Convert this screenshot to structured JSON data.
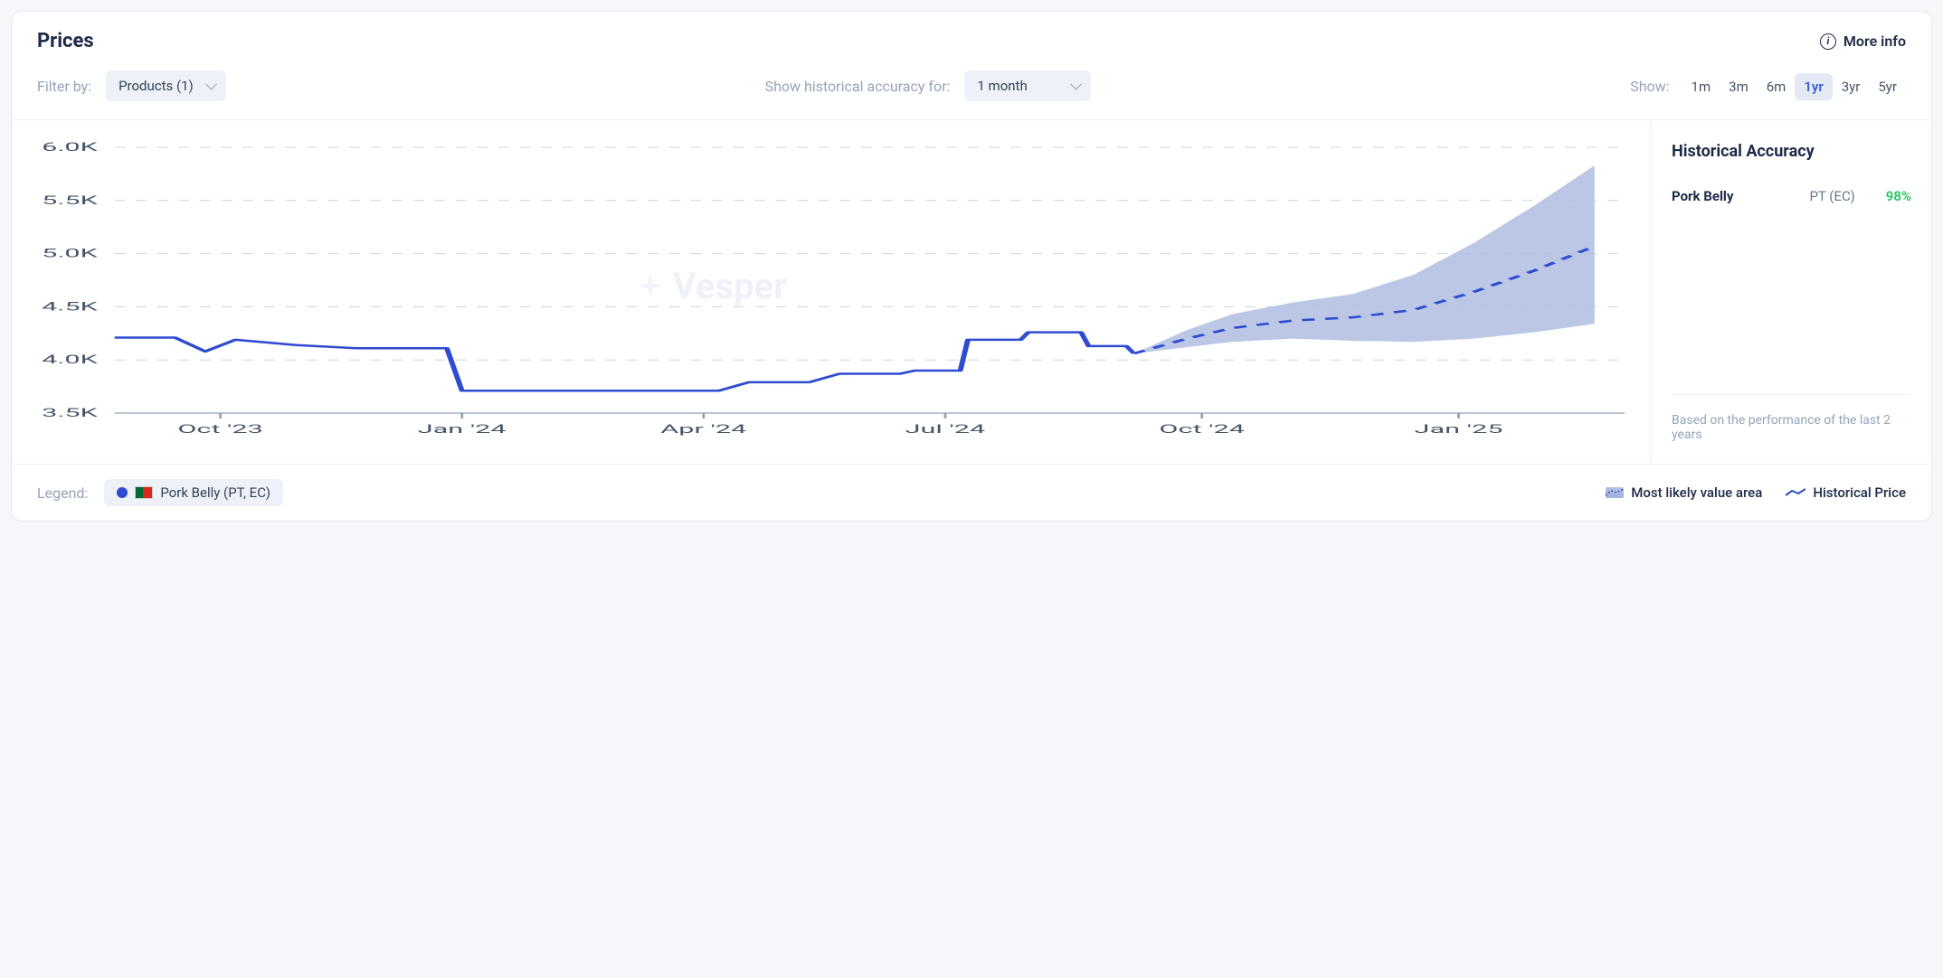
{
  "title": "Prices",
  "moreInfo": "More info",
  "filters": {
    "filterByLabel": "Filter by:",
    "productsSelect": "Products (1)",
    "showHistLabel": "Show historical accuracy for:",
    "histSelect": "1 month",
    "showLabel": "Show:",
    "ranges": [
      "1m",
      "3m",
      "6m",
      "1yr",
      "3yr",
      "5yr"
    ],
    "activeRange": "1yr"
  },
  "chart": {
    "type": "line-with-forecast-band",
    "ylim": [
      3500,
      6000
    ],
    "yticks": [
      3500,
      4000,
      4500,
      5000,
      5500,
      6000
    ],
    "ytickLabels": [
      "3.5K",
      "4.0K",
      "4.5K",
      "5.0K",
      "5.5K",
      "6.0K"
    ],
    "xticks": [
      0.07,
      0.23,
      0.39,
      0.55,
      0.72,
      0.89
    ],
    "xtickLabels": [
      "Oct '23",
      "Jan '24",
      "Apr '24",
      "Jul '24",
      "Oct '24",
      "Jan '25"
    ],
    "colors": {
      "line": "#2f4bd1",
      "forecastLine": "#2f4bd1",
      "band": "#afbde0",
      "grid": "#cbd5e1",
      "axis": "#94a3b8",
      "background": "#ffffff"
    },
    "lineWidth": 2.5,
    "forecastDash": "6 5",
    "historical": [
      [
        0.0,
        4210
      ],
      [
        0.04,
        4210
      ],
      [
        0.06,
        4080
      ],
      [
        0.08,
        4190
      ],
      [
        0.12,
        4140
      ],
      [
        0.16,
        4110
      ],
      [
        0.22,
        4110
      ],
      [
        0.23,
        3710
      ],
      [
        0.4,
        3710
      ],
      [
        0.42,
        3790
      ],
      [
        0.46,
        3790
      ],
      [
        0.48,
        3870
      ],
      [
        0.52,
        3870
      ],
      [
        0.53,
        3900
      ],
      [
        0.56,
        3900
      ],
      [
        0.565,
        4190
      ],
      [
        0.6,
        4190
      ],
      [
        0.605,
        4260
      ],
      [
        0.64,
        4260
      ],
      [
        0.645,
        4130
      ],
      [
        0.67,
        4130
      ],
      [
        0.675,
        4060
      ]
    ],
    "forecast": [
      [
        0.675,
        4060
      ],
      [
        0.71,
        4200
      ],
      [
        0.74,
        4300
      ],
      [
        0.78,
        4370
      ],
      [
        0.82,
        4400
      ],
      [
        0.86,
        4470
      ],
      [
        0.9,
        4640
      ],
      [
        0.94,
        4840
      ],
      [
        0.98,
        5070
      ]
    ],
    "bandUpper": [
      [
        0.675,
        4060
      ],
      [
        0.71,
        4280
      ],
      [
        0.74,
        4430
      ],
      [
        0.78,
        4540
      ],
      [
        0.82,
        4620
      ],
      [
        0.86,
        4800
      ],
      [
        0.9,
        5100
      ],
      [
        0.94,
        5450
      ],
      [
        0.98,
        5830
      ]
    ],
    "bandLower": [
      [
        0.675,
        4060
      ],
      [
        0.71,
        4120
      ],
      [
        0.74,
        4170
      ],
      [
        0.78,
        4200
      ],
      [
        0.82,
        4180
      ],
      [
        0.86,
        4170
      ],
      [
        0.9,
        4200
      ],
      [
        0.94,
        4260
      ],
      [
        0.98,
        4340
      ]
    ],
    "watermark": "Vesper"
  },
  "side": {
    "title": "Historical Accuracy",
    "product": "Pork Belly",
    "region": "PT (EC)",
    "accuracy": "98%",
    "accuracyColor": "#22c55e",
    "footnote": "Based on the performance of the last 2 years"
  },
  "legend": {
    "label": "Legend:",
    "chipText": "Pork Belly (PT, EC)",
    "area": "Most likely value area",
    "hist": "Historical Price"
  }
}
